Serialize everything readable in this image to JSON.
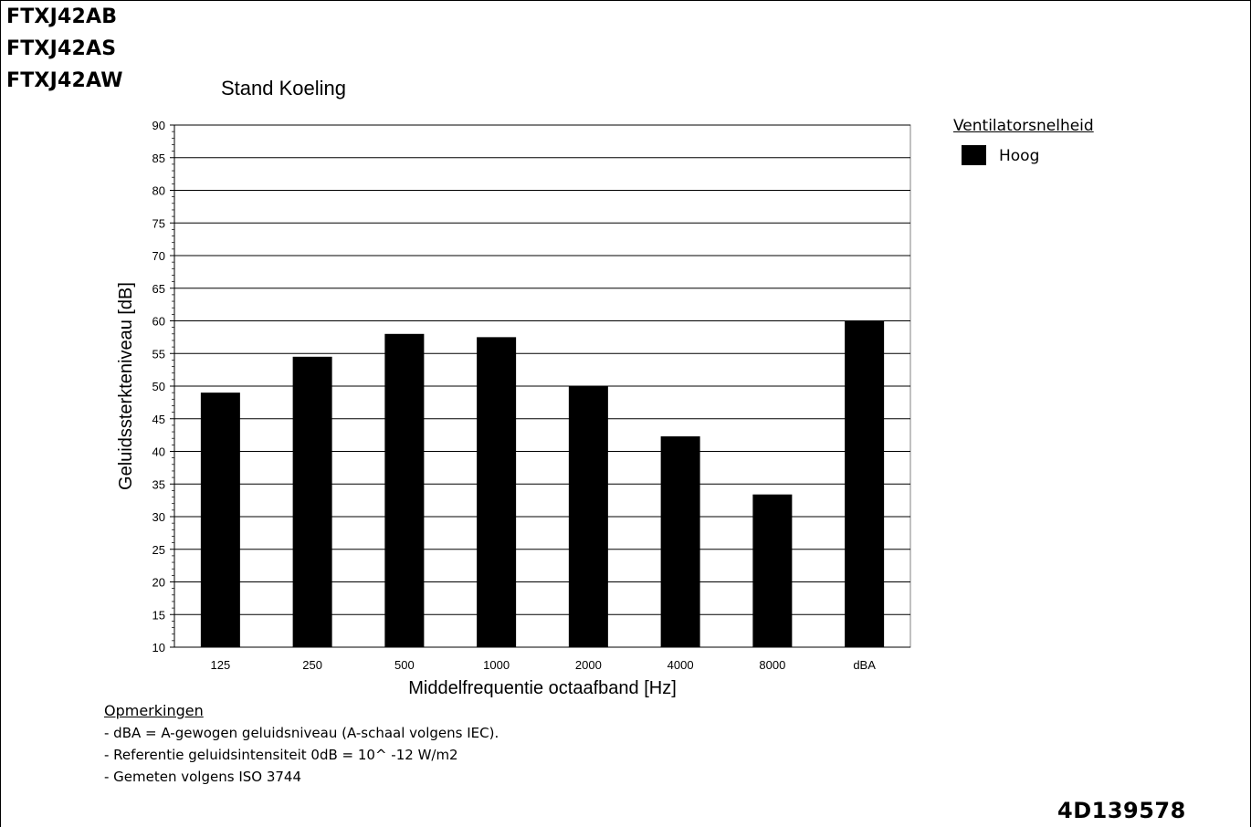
{
  "models": [
    "FTXJ42AB",
    "FTXJ42AS",
    "FTXJ42AW"
  ],
  "legend": {
    "title": "Ventilatorsnelheid",
    "items": [
      {
        "label": "Hoog",
        "color": "#000000"
      }
    ]
  },
  "notes": {
    "title": "Opmerkingen",
    "items": [
      "- dBA = A-gewogen geluidsniveau (A-schaal volgens IEC).",
      "- Referentie geluidsintensiteit 0dB = 10^ -12 W/m2",
      "- Gemeten volgens ISO 3744"
    ]
  },
  "doc_code": "4D139578",
  "chart_data": {
    "type": "bar",
    "title": "Stand Koeling",
    "xlabel": "Middelfrequentie octaafband [Hz]",
    "ylabel": "Geluidssterkteniveau [dB]",
    "categories": [
      "125",
      "250",
      "500",
      "1000",
      "2000",
      "4000",
      "8000",
      "dBA"
    ],
    "series": [
      {
        "name": "Hoog",
        "color": "#000000",
        "values": [
          49,
          54.5,
          58,
          57.5,
          50,
          42.3,
          33.4,
          60
        ]
      }
    ],
    "ylim": [
      10,
      90
    ],
    "yticks": [
      10,
      15,
      20,
      25,
      30,
      35,
      40,
      45,
      50,
      55,
      60,
      65,
      70,
      75,
      80,
      85,
      90
    ],
    "grid": true,
    "legend_position": "top-right"
  }
}
